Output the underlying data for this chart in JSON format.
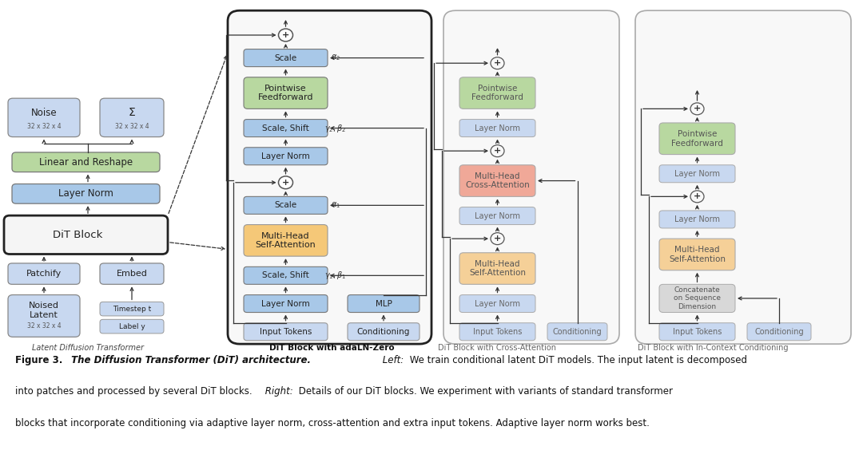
{
  "bg_color": "#ffffff",
  "fig_width": 10.8,
  "fig_height": 5.64,
  "colors": {
    "blue_light": "#c8d8f0",
    "blue_box": "#a8c8e8",
    "green_box": "#b8d8a0",
    "orange_box": "#f5c878",
    "pink_box": "#f0a898",
    "peach_box": "#f5d098",
    "gray_box": "#d8d8d8",
    "section_bg": "#f0f0f0"
  },
  "section_labels": [
    "Latent Diffusion Transformer",
    "DiT Block with adaLN-Zero",
    "DiT Block with Cross-Attention",
    "DiT Block with In-Context Conditioning"
  ]
}
